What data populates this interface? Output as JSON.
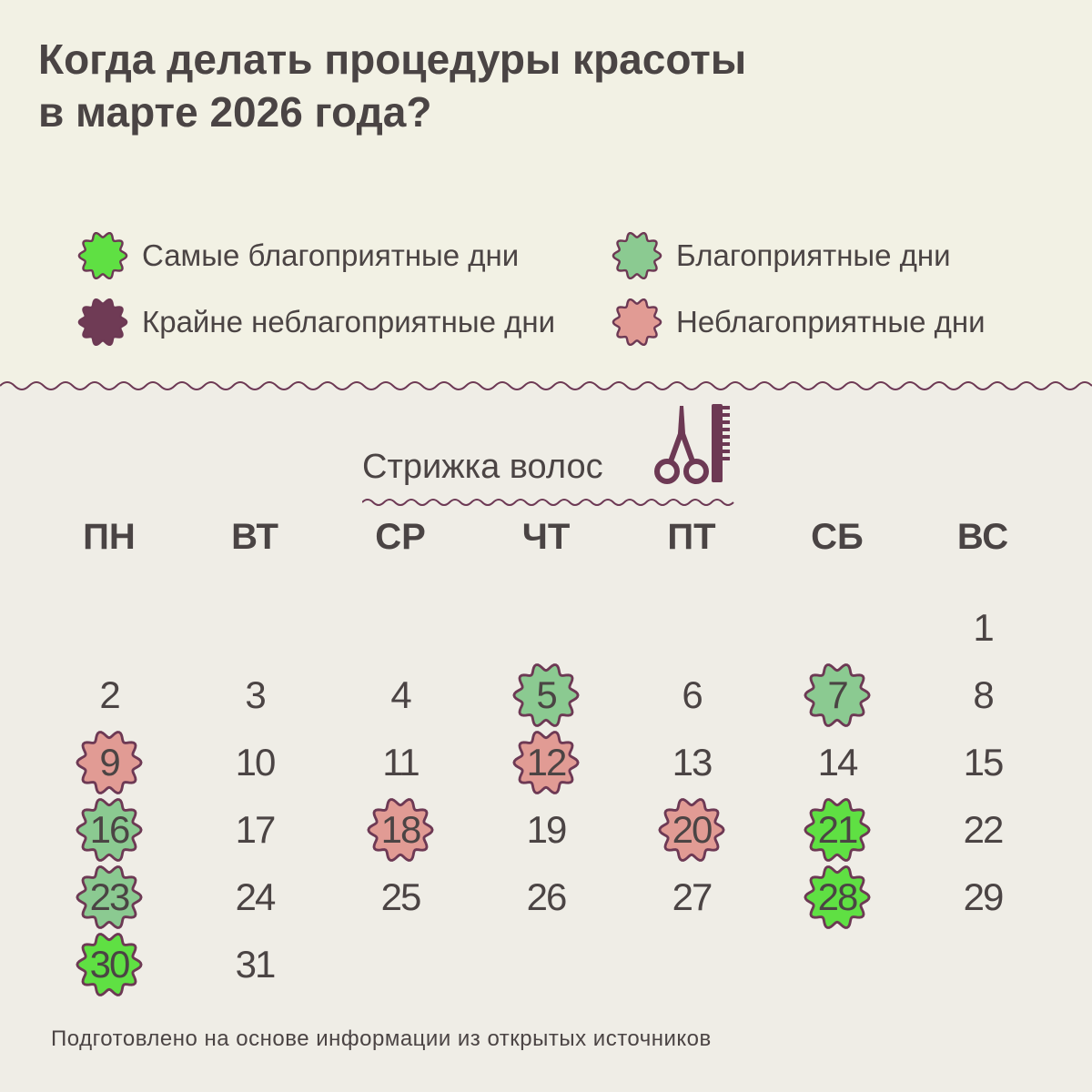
{
  "title": {
    "line1": "Когда делать процедуры красоты",
    "line2": "в марте 2026 года?"
  },
  "colors": {
    "best": "#5fe043",
    "good": "#8bca91",
    "very_bad": "#6f3b55",
    "bad": "#e19b94",
    "outline": "#6d3954",
    "top_background": "#f2f1e4",
    "bottom_background": "#efede6"
  },
  "legend": [
    {
      "key": "best",
      "label": "Самые благоприятные дни"
    },
    {
      "key": "good",
      "label": "Благоприятные дни"
    },
    {
      "key": "very_bad",
      "label": "Крайне неблагоприятные дни"
    },
    {
      "key": "bad",
      "label": "Неблагоприятные дни"
    }
  ],
  "section": {
    "title": "Стрижка волос",
    "icon": "scissors-comb-icon"
  },
  "calendar": {
    "weekdays": [
      "ПН",
      "ВТ",
      "СР",
      "ЧТ",
      "ПТ",
      "СБ",
      "ВС"
    ],
    "first_weekday_index": 6,
    "days_in_month": 31,
    "marked_days": {
      "5": "good",
      "7": "good",
      "9": "bad",
      "12": "bad",
      "16": "good",
      "18": "bad",
      "20": "bad",
      "21": "best",
      "23": "good",
      "28": "best",
      "30": "best"
    }
  },
  "source_note": "Подготовлено на основе информации из открытых источников"
}
